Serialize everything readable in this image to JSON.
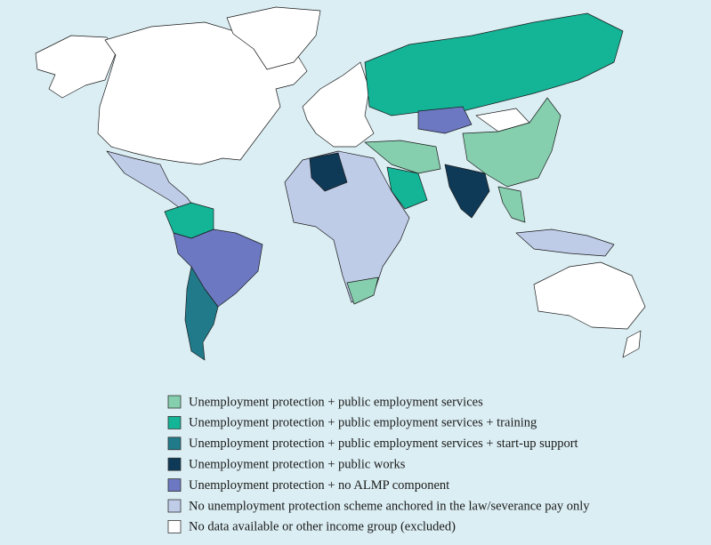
{
  "legend": {
    "items": [
      {
        "label": "Unemployment protection + public employment services",
        "color": "#86cfae"
      },
      {
        "label": "Unemployment protection + public employment services + training",
        "color": "#14b497"
      },
      {
        "label": "Unemployment protection + public employment services + start-up support",
        "color": "#217a8a"
      },
      {
        "label": "Unemployment protection + public works",
        "color": "#0e3a58"
      },
      {
        "label": "Unemployment protection + no ALMP component",
        "color": "#6c78c1"
      },
      {
        "label": "No unemployment protection scheme anchored in the law/severance pay only",
        "color": "#bfcce8"
      },
      {
        "label": "No data available or other income group (excluded)",
        "color": "#ffffff"
      }
    ]
  }
}
